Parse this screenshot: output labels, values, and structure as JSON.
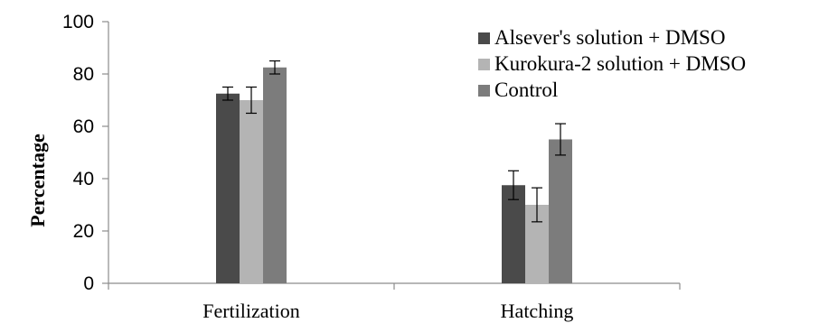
{
  "chart_data": {
    "type": "bar",
    "categories": [
      "Fertilization",
      "Hatching"
    ],
    "series": [
      {
        "name": "Alsever's solution + DMSO",
        "values": [
          72.5,
          37.5
        ],
        "errors": [
          2.5,
          5.5
        ],
        "color": "#4a4a4a"
      },
      {
        "name": "Kurokura-2 solution + DMSO",
        "values": [
          70,
          30
        ],
        "errors": [
          5,
          6.5
        ],
        "color": "#b4b4b4"
      },
      {
        "name": "Control",
        "values": [
          82.5,
          55
        ],
        "errors": [
          2.5,
          6
        ],
        "color": "#7c7c7c"
      }
    ],
    "ylabel": "Percentage",
    "xlabel": "",
    "ylim": [
      0,
      100
    ],
    "yticks": [
      0,
      20,
      40,
      60,
      80,
      100
    ],
    "legend_position": "top-right",
    "grid": false
  }
}
